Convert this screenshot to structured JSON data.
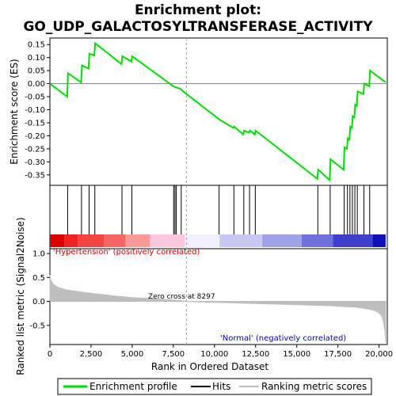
{
  "title_line1": "Enrichment plot:",
  "title_line2": "GO_UDP_GALACTOSYLTRANSFERASE_ACTIVITY",
  "colors": {
    "profile": "#00dd00",
    "hits": "#000000",
    "metric": "#bebebe",
    "zero_line": "#808080",
    "pos_annot": "#cc0000",
    "neg_annot": "#0000cc"
  },
  "chart_data": [
    {
      "type": "line",
      "name": "enrichment-profile",
      "ylabel": "Enrichment score (ES)",
      "xlim": [
        0,
        20500
      ],
      "ylim": [
        -0.39,
        0.175
      ],
      "yticks": [
        0.15,
        0.1,
        0.05,
        0.0,
        -0.05,
        -0.1,
        -0.15,
        -0.2,
        -0.25,
        -0.3,
        -0.35
      ],
      "ytick_labels": [
        "0.15",
        "0.10",
        "0.05",
        "0.00",
        "-0.05",
        "-0.10",
        "-0.15",
        "-0.20",
        "-0.25",
        "-0.30",
        "-0.35"
      ],
      "x": [
        0,
        1050,
        1100,
        1900,
        1950,
        2350,
        2400,
        2700,
        2750,
        4350,
        4400,
        4950,
        5000,
        7500,
        7550,
        7650,
        7700,
        7950,
        8000,
        10250,
        10300,
        11150,
        11200,
        11750,
        11800,
        12100,
        12150,
        12450,
        12500,
        16250,
        16300,
        17000,
        17050,
        17850,
        17900,
        18050,
        18100,
        18200,
        18250,
        18350,
        18400,
        18500,
        18550,
        18650,
        18700,
        19050,
        19100,
        19400,
        19450,
        20400
      ],
      "y": [
        0.0,
        -0.05,
        0.04,
        0.005,
        0.07,
        0.058,
        0.115,
        0.108,
        0.155,
        0.075,
        0.105,
        0.085,
        0.105,
        -0.01,
        -0.012,
        -0.013,
        -0.015,
        -0.02,
        -0.025,
        -0.135,
        -0.138,
        -0.17,
        -0.165,
        -0.195,
        -0.18,
        -0.188,
        -0.18,
        -0.195,
        -0.18,
        -0.365,
        -0.33,
        -0.37,
        -0.29,
        -0.33,
        -0.245,
        -0.25,
        -0.21,
        -0.215,
        -0.165,
        -0.17,
        -0.125,
        -0.13,
        -0.08,
        -0.085,
        -0.03,
        -0.04,
        0.0,
        -0.01,
        0.05,
        0.005
      ]
    },
    {
      "type": "scatter",
      "name": "hits",
      "x": [
        1080,
        1920,
        2380,
        2730,
        4380,
        4980,
        7520,
        7600,
        7680,
        7980,
        10280,
        11180,
        11780,
        12130,
        12480,
        16280,
        17030,
        17880,
        18080,
        18230,
        18380,
        18530,
        18680,
        19080,
        19430
      ]
    },
    {
      "type": "area",
      "name": "ranked-list-metric",
      "xlabel": "Rank in Ordered Dataset",
      "ylabel": "Ranked list metric (Signal2Noise)",
      "xlim": [
        0,
        20500
      ],
      "ylim": [
        -0.9,
        1.1
      ],
      "xticks": [
        0,
        2500,
        5000,
        7500,
        10000,
        12500,
        15000,
        17500,
        20000
      ],
      "xtick_labels": [
        "0",
        "2,500",
        "5,000",
        "7,500",
        "10,000",
        "12,500",
        "15,000",
        "17,500",
        "20,000"
      ],
      "yticks": [
        1.0,
        0.5,
        0.0,
        -0.5
      ],
      "ytick_labels": [
        "1.0",
        "0.5",
        "0.0",
        "-0.5"
      ],
      "x": [
        0,
        50,
        200,
        500,
        1000,
        2000,
        3000,
        4000,
        5000,
        6000,
        7000,
        8000,
        8297,
        9000,
        10000,
        11000,
        12000,
        13000,
        14000,
        15000,
        16000,
        17000,
        18000,
        18500,
        19000,
        19500,
        19800,
        20000,
        20150,
        20250,
        20350,
        20400
      ],
      "y": [
        0.55,
        0.45,
        0.36,
        0.29,
        0.24,
        0.19,
        0.15,
        0.11,
        0.08,
        0.06,
        0.04,
        0.015,
        0.0,
        -0.01,
        -0.02,
        -0.03,
        -0.04,
        -0.05,
        -0.06,
        -0.07,
        -0.08,
        -0.09,
        -0.11,
        -0.12,
        -0.14,
        -0.17,
        -0.2,
        -0.24,
        -0.3,
        -0.4,
        -0.6,
        -0.85
      ],
      "annotations": {
        "positive": "'Hypertension' (positively correlated)",
        "negative": "'Normal' (negatively correlated)",
        "zero_cross": "Zero cross at 8297"
      },
      "zero_cross": 8297
    }
  ],
  "colorbar": {
    "colors": [
      "#dd0000",
      "#ee2222",
      "#f34444",
      "#f76666",
      "#fa9999",
      "#fcc8e0",
      "#efefff",
      "#c8c8f2",
      "#a0a0e8",
      "#7070dd",
      "#4040cc",
      "#1010bb"
    ],
    "bounds": [
      0,
      900,
      1700,
      3300,
      4600,
      6100,
      8200,
      10300,
      12900,
      15300,
      17200,
      19600,
      20400
    ]
  },
  "legend": {
    "items": [
      {
        "label": "Enrichment profile",
        "color": "#00dd00"
      },
      {
        "label": "Hits",
        "color": "#000000"
      },
      {
        "label": "Ranking metric scores",
        "color": "#bebebe"
      }
    ]
  }
}
